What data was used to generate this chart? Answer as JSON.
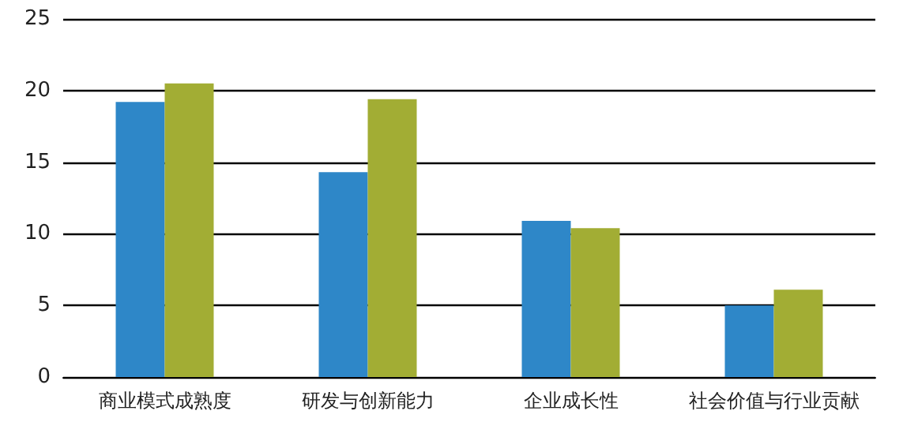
{
  "chart_data": {
    "type": "bar",
    "categories": [
      "商业模式成熟度",
      "研发与创新能力",
      "企业成长性",
      "社会价值与行业贡献"
    ],
    "series": [
      {
        "color": "#2e87c8",
        "values": [
          19.2,
          14.3,
          10.9,
          5.0
        ]
      },
      {
        "color": "#a2ad34",
        "values": [
          20.5,
          19.4,
          10.4,
          6.1
        ]
      }
    ],
    "ylim": [
      0,
      25
    ],
    "yticks": [
      0,
      5,
      10,
      15,
      20,
      25
    ],
    "grid": "y"
  }
}
